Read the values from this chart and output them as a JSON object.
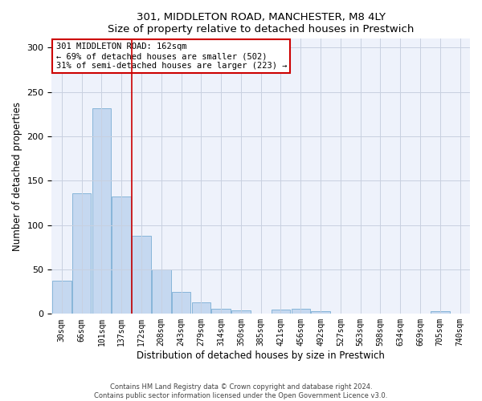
{
  "title1": "301, MIDDLETON ROAD, MANCHESTER, M8 4LY",
  "title2": "Size of property relative to detached houses in Prestwich",
  "xlabel": "Distribution of detached houses by size in Prestwich",
  "ylabel": "Number of detached properties",
  "bar_labels": [
    "30sqm",
    "66sqm",
    "101sqm",
    "137sqm",
    "172sqm",
    "208sqm",
    "243sqm",
    "279sqm",
    "314sqm",
    "350sqm",
    "385sqm",
    "421sqm",
    "456sqm",
    "492sqm",
    "527sqm",
    "563sqm",
    "598sqm",
    "634sqm",
    "669sqm",
    "705sqm",
    "740sqm"
  ],
  "bar_values": [
    37,
    136,
    232,
    132,
    88,
    50,
    25,
    13,
    6,
    4,
    0,
    5,
    6,
    3,
    0,
    0,
    0,
    0,
    0,
    3,
    0
  ],
  "bar_color": "#c5d8f0",
  "bar_edge_color": "#7aaed4",
  "vline_color": "#cc0000",
  "annotation_text": "301 MIDDLETON ROAD: 162sqm\n← 69% of detached houses are smaller (502)\n31% of semi-detached houses are larger (223) →",
  "annotation_box_color": "#ffffff",
  "annotation_box_edge": "#cc0000",
  "ylim": [
    0,
    310
  ],
  "yticks": [
    0,
    50,
    100,
    150,
    200,
    250,
    300
  ],
  "footer1": "Contains HM Land Registry data © Crown copyright and database right 2024.",
  "footer2": "Contains public sector information licensed under the Open Government Licence v3.0.",
  "bg_color": "#eef2fb",
  "grid_color": "#c8d0e0"
}
